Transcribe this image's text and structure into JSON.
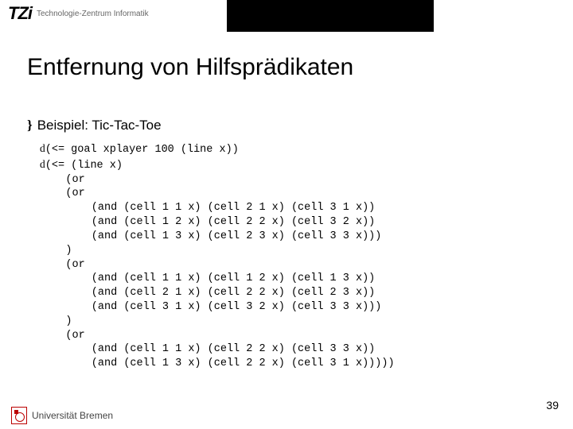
{
  "header": {
    "logo_mark": "TZi",
    "logo_sub": "Technologie-Zentrum Informatik"
  },
  "title": "Entfernung von Hilfsprädikaten",
  "subtitle": {
    "bullet": "}",
    "text": "Beispiel: Tic-Tac-Toe"
  },
  "code": {
    "bullet1": "d",
    "line1": "(<= goal xplayer 100 (line x))",
    "bullet2": "d",
    "line2": "(<= (line x)",
    "body": "    (or\n    (or\n        (and (cell 1 1 x) (cell 2 1 x) (cell 3 1 x))\n        (and (cell 1 2 x) (cell 2 2 x) (cell 3 2 x))\n        (and (cell 1 3 x) (cell 2 3 x) (cell 3 3 x)))\n    )\n    (or\n        (and (cell 1 1 x) (cell 1 2 x) (cell 1 3 x))\n        (and (cell 2 1 x) (cell 2 2 x) (cell 2 3 x))\n        (and (cell 3 1 x) (cell 3 2 x) (cell 3 3 x)))\n    )\n    (or\n        (and (cell 1 1 x) (cell 2 2 x) (cell 3 3 x))\n        (and (cell 1 3 x) (cell 2 2 x) (cell 3 1 x)))))"
  },
  "footer": {
    "uni": "Universität Bremen"
  },
  "page_number": "39"
}
